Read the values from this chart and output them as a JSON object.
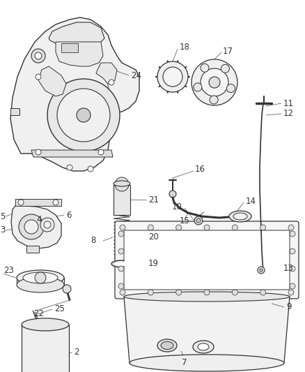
{
  "bg_color": "#ffffff",
  "line_color": "#333333",
  "leader_color": "#666666",
  "font_size": 8.5,
  "dpi": 100,
  "fig_w": 4.39,
  "fig_h": 5.33
}
